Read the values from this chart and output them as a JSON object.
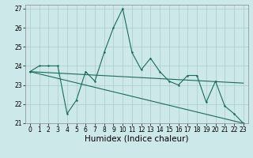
{
  "title": "",
  "xlabel": "Humidex (Indice chaleur)",
  "ylabel": "",
  "xlim": [
    -0.5,
    23.5
  ],
  "ylim": [
    21,
    27.2
  ],
  "yticks": [
    21,
    22,
    23,
    24,
    25,
    26,
    27
  ],
  "xticks": [
    0,
    1,
    2,
    3,
    4,
    5,
    6,
    7,
    8,
    9,
    10,
    11,
    12,
    13,
    14,
    15,
    16,
    17,
    18,
    19,
    20,
    21,
    22,
    23
  ],
  "background_color": "#cde8e8",
  "grid_color": "#aacccc",
  "line_color": "#1a6b5a",
  "line1_x": [
    0,
    1,
    2,
    3,
    4,
    5,
    6,
    7,
    8,
    9,
    10,
    11,
    12,
    13,
    14,
    15,
    16,
    17,
    18,
    19,
    20,
    21,
    22,
    23
  ],
  "line1_y": [
    23.7,
    24.0,
    24.0,
    24.0,
    21.5,
    22.2,
    23.7,
    23.2,
    24.7,
    26.0,
    27.0,
    24.7,
    23.8,
    24.4,
    23.7,
    23.2,
    23.0,
    23.5,
    23.5,
    22.1,
    23.2,
    21.9,
    21.5,
    21.0
  ],
  "line2_x": [
    0,
    23
  ],
  "line2_y": [
    23.7,
    23.1
  ],
  "line3_x": [
    0,
    23
  ],
  "line3_y": [
    23.7,
    21.0
  ],
  "tick_fontsize": 5.5,
  "xlabel_fontsize": 7.5,
  "linewidth": 0.8,
  "markersize": 1.8
}
